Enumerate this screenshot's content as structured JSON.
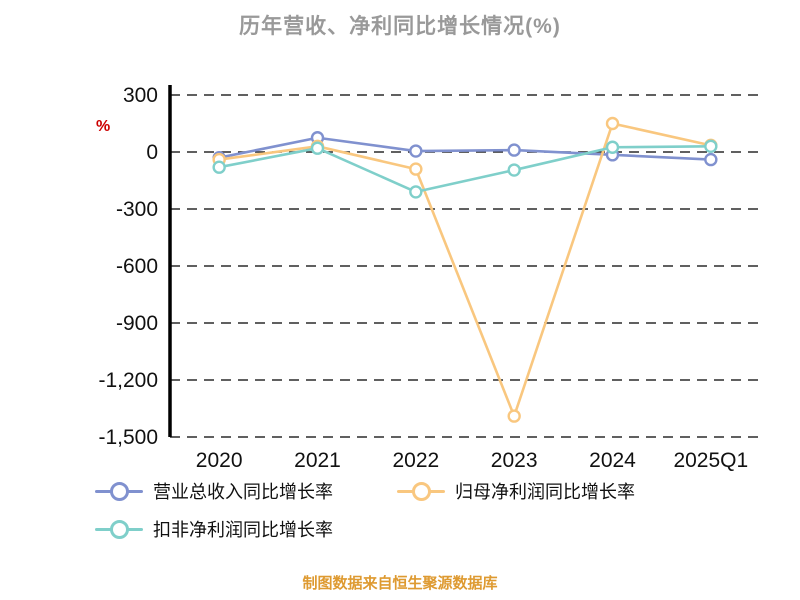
{
  "chart_data": {
    "type": "line",
    "title": "历年营收、净利同比增长情况(%)",
    "ylabel": "%",
    "xlabel": "",
    "categories": [
      "2020",
      "2021",
      "2022",
      "2023",
      "2024",
      "2025Q1"
    ],
    "series": [
      {
        "name": "营业总收入同比增长率",
        "color": "#8091cf",
        "values": [
          -30,
          75,
          5,
          10,
          -15,
          -40
        ]
      },
      {
        "name": "归母净利润同比增长率",
        "color": "#f9c77f",
        "values": [
          -40,
          30,
          -90,
          -1390,
          150,
          35
        ]
      },
      {
        "name": "扣非净利润同比增长率",
        "color": "#7fcfca",
        "values": [
          -80,
          20,
          -210,
          -95,
          25,
          30
        ]
      }
    ],
    "ylim": [
      -1500,
      300
    ],
    "yticks": [
      300,
      0,
      -300,
      -600,
      -900,
      -1200,
      -1500
    ],
    "grid": "dashed-horizontal",
    "legend_position": "bottom",
    "source_note": "制图数据来自恒生聚源数据库"
  },
  "colors": {
    "title": "#999999",
    "axis_text": "#111111",
    "y_unit": "#cc0000",
    "source_note": "#de9a31",
    "gridline": "#2b2b2b"
  }
}
